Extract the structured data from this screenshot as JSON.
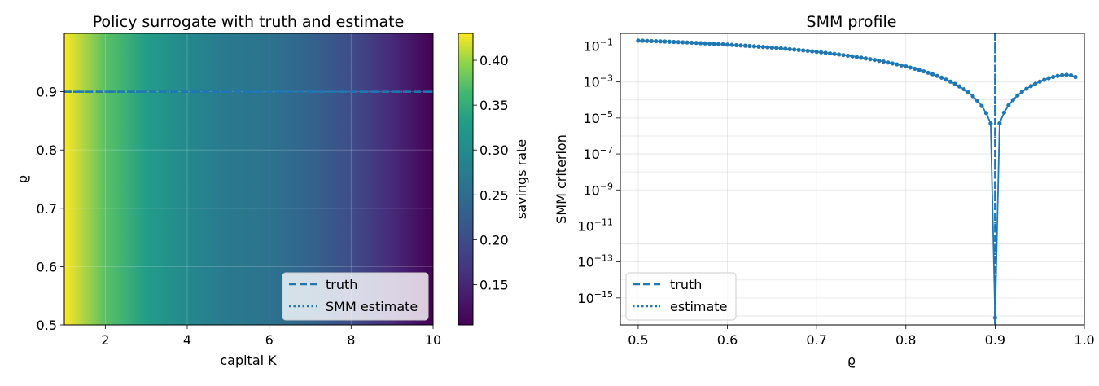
{
  "colors": {
    "series": "#1f77b4",
    "viridis_low": "#440154",
    "viridis_high": "#fde725"
  },
  "chart_data": [
    {
      "type": "heatmap",
      "title": "Policy surrogate with truth and estimate",
      "xlabel": "capital K",
      "ylabel": "ϱ",
      "xlim": [
        1,
        10
      ],
      "ylim": [
        0.5,
        1.0
      ],
      "xticks": [
        2,
        4,
        6,
        8,
        10
      ],
      "xtick_labels": [
        "2",
        "4",
        "6",
        "8",
        "10"
      ],
      "yticks": [
        0.5,
        0.6,
        0.7,
        0.8,
        0.9
      ],
      "ytick_labels": [
        "0.5",
        "0.6",
        "0.7",
        "0.8",
        "0.9"
      ],
      "colormap": "viridis",
      "z_varies_along": "x",
      "z_profile": {
        "capital_K": [
          1,
          2,
          3,
          4,
          5,
          6,
          7,
          8,
          9,
          10
        ],
        "savings_rate": [
          0.43,
          0.375,
          0.33,
          0.295,
          0.27,
          0.26,
          0.235,
          0.2,
          0.155,
          0.105
        ]
      },
      "colorbar": {
        "label": "savings rate",
        "range": [
          0.105,
          0.43
        ],
        "ticks": [
          0.15,
          0.2,
          0.25,
          0.3,
          0.35,
          0.4
        ],
        "tick_labels": [
          "0.15",
          "0.20",
          "0.25",
          "0.30",
          "0.35",
          "0.40"
        ]
      },
      "lines": [
        {
          "name": "truth",
          "orientation": "horizontal",
          "value": 0.9,
          "style": "dashed"
        },
        {
          "name": "SMM estimate",
          "orientation": "horizontal",
          "value": 0.9,
          "style": "dotted"
        }
      ],
      "legend": {
        "position": "lower-right",
        "entries": [
          "truth",
          "SMM estimate"
        ]
      },
      "grid": true
    },
    {
      "type": "line",
      "title": "SMM profile",
      "xlabel": "ϱ",
      "ylabel": "SMM criterion",
      "yscale": "log",
      "xlim": [
        0.48,
        1.0
      ],
      "ylim_log10": [
        -16.5,
        -0.3
      ],
      "xticks": [
        0.5,
        0.6,
        0.7,
        0.8,
        0.9,
        1.0
      ],
      "xtick_labels": [
        "0.5",
        "0.6",
        "0.7",
        "0.8",
        "0.9",
        "1.0"
      ],
      "yticks_log10": [
        -15,
        -13,
        -11,
        -9,
        -7,
        -5,
        -3,
        -1
      ],
      "ytick_labels": [
        {
          "base": "10",
          "exp": "−15"
        },
        {
          "base": "10",
          "exp": "−13"
        },
        {
          "base": "10",
          "exp": "−11"
        },
        {
          "base": "10",
          "exp": "−9"
        },
        {
          "base": "10",
          "exp": "−7"
        },
        {
          "base": "10",
          "exp": "−5"
        },
        {
          "base": "10",
          "exp": "−3"
        },
        {
          "base": "10",
          "exp": "−1"
        }
      ],
      "series": [
        {
          "x": [
            0.5,
            0.505,
            0.51,
            0.515,
            0.52,
            0.525,
            0.53,
            0.535,
            0.54,
            0.545,
            0.55,
            0.555,
            0.56,
            0.565,
            0.57,
            0.575,
            0.58,
            0.585,
            0.59,
            0.595,
            0.6,
            0.605,
            0.61,
            0.615,
            0.62,
            0.625,
            0.63,
            0.635,
            0.64,
            0.645,
            0.65,
            0.655,
            0.66,
            0.665,
            0.67,
            0.675,
            0.68,
            0.685,
            0.69,
            0.695,
            0.7,
            0.705,
            0.71,
            0.715,
            0.72,
            0.725,
            0.73,
            0.735,
            0.74,
            0.745,
            0.75,
            0.755,
            0.76,
            0.765,
            0.77,
            0.775,
            0.78,
            0.785,
            0.79,
            0.795,
            0.8,
            0.805,
            0.81,
            0.815,
            0.82,
            0.825,
            0.83,
            0.835,
            0.84,
            0.845,
            0.85,
            0.855,
            0.86,
            0.865,
            0.87,
            0.875,
            0.88,
            0.885,
            0.89,
            0.895,
            0.9,
            0.905,
            0.91,
            0.915,
            0.92,
            0.925,
            0.93,
            0.935,
            0.94,
            0.945,
            0.95,
            0.955,
            0.96,
            0.965,
            0.97,
            0.975,
            0.98,
            0.985,
            0.99
          ],
          "log10_y": [
            -0.7,
            -0.708,
            -0.717,
            -0.726,
            -0.735,
            -0.744,
            -0.754,
            -0.764,
            -0.774,
            -0.785,
            -0.796,
            -0.807,
            -0.818,
            -0.83,
            -0.842,
            -0.855,
            -0.868,
            -0.881,
            -0.894,
            -0.908,
            -0.923,
            -0.938,
            -0.953,
            -0.969,
            -0.985,
            -1.001,
            -1.018,
            -1.036,
            -1.054,
            -1.073,
            -1.092,
            -1.112,
            -1.133,
            -1.154,
            -1.176,
            -1.199,
            -1.222,
            -1.246,
            -1.271,
            -1.297,
            -1.324,
            -1.352,
            -1.381,
            -1.411,
            -1.442,
            -1.474,
            -1.507,
            -1.541,
            -1.577,
            -1.614,
            -1.652,
            -1.692,
            -1.733,
            -1.776,
            -1.821,
            -1.868,
            -1.917,
            -1.968,
            -2.022,
            -2.078,
            -2.137,
            -2.199,
            -2.265,
            -2.334,
            -2.408,
            -2.487,
            -2.571,
            -2.661,
            -2.759,
            -2.865,
            -2.98,
            -3.106,
            -3.246,
            -3.403,
            -3.581,
            -3.787,
            -4.032,
            -4.334,
            -4.727,
            -5.305,
            -16.1,
            -5.3,
            -4.7,
            -4.3,
            -4.0,
            -3.75,
            -3.55,
            -3.38,
            -3.23,
            -3.1,
            -2.98,
            -2.88,
            -2.79,
            -2.72,
            -2.66,
            -2.62,
            -2.6,
            -2.63,
            -2.72
          ]
        }
      ],
      "lines": [
        {
          "name": "truth",
          "orientation": "vertical",
          "value": 0.9,
          "style": "dashed"
        },
        {
          "name": "estimate",
          "orientation": "vertical",
          "value": 0.9,
          "style": "dotted"
        }
      ],
      "legend": {
        "position": "lower-left",
        "entries": [
          "truth",
          "estimate"
        ]
      },
      "grid": true
    }
  ]
}
